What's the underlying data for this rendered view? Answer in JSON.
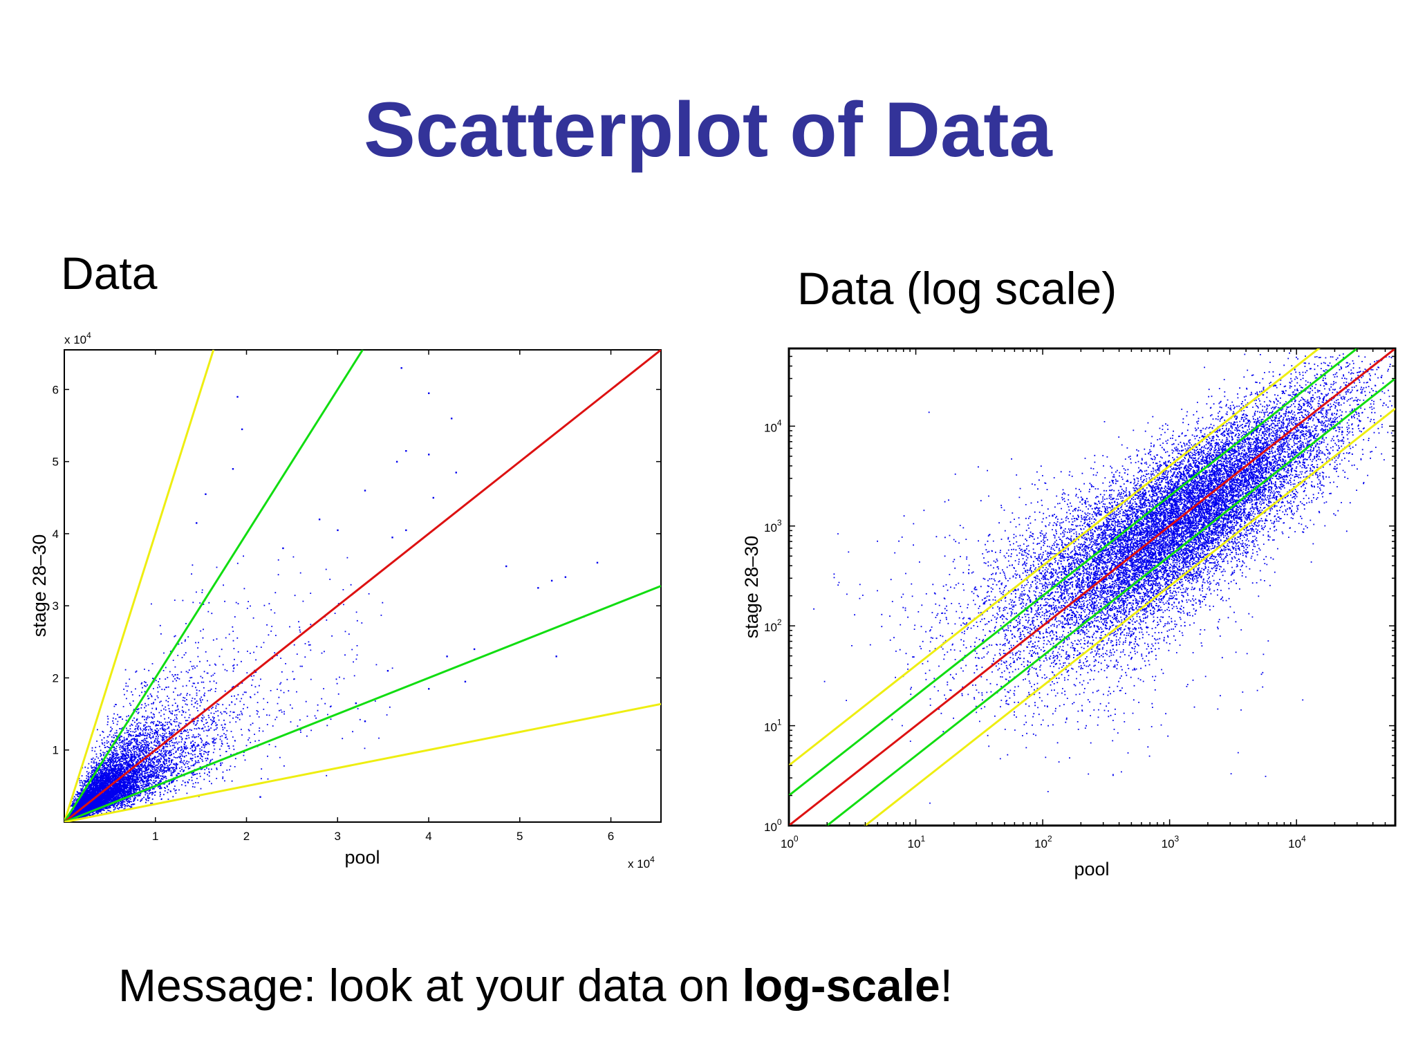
{
  "title": "Scatterplot of Data",
  "captions": {
    "linear": "Data",
    "log": "Data (log scale)"
  },
  "message": {
    "prefix": "Message: look at your data on ",
    "emphasis": "log-scale",
    "suffix": "!"
  },
  "colors": {
    "title": "#333399",
    "points": "#0000ee",
    "identity": "#dd1111",
    "two_fold": "#11dd11",
    "four_fold": "#eeee11"
  },
  "chart_data": [
    {
      "type": "scatter",
      "panel": "linear",
      "xlabel": "pool",
      "ylabel": "stage 28–30",
      "x_multiplier": "x 10",
      "y_multiplier": "x 10",
      "multiplier_exponent": "4",
      "xlim": [
        0,
        65500
      ],
      "ylim": [
        0,
        65500
      ],
      "xticks": [
        10000,
        20000,
        30000,
        40000,
        50000,
        60000
      ],
      "xtick_labels": [
        "1",
        "2",
        "3",
        "4",
        "5",
        "6"
      ],
      "yticks": [
        10000,
        20000,
        30000,
        40000,
        50000,
        60000
      ],
      "ytick_labels": [
        "1",
        "2",
        "3",
        "4",
        "5",
        "6"
      ],
      "grid": false,
      "reference_lines": [
        {
          "slope": 4,
          "color": "yellow"
        },
        {
          "slope": 2,
          "color": "green"
        },
        {
          "slope": 1,
          "color": "red"
        },
        {
          "slope": 0.5,
          "color": "green"
        },
        {
          "slope": 0.25,
          "color": "yellow"
        }
      ],
      "outliers": [
        [
          19000,
          59000
        ],
        [
          19500,
          54500
        ],
        [
          18500,
          49000
        ],
        [
          15500,
          45500
        ],
        [
          14500,
          41500
        ],
        [
          37000,
          63000
        ],
        [
          40000,
          59500
        ],
        [
          42500,
          56000
        ],
        [
          36500,
          50000
        ],
        [
          37500,
          51500
        ],
        [
          40000,
          51000
        ],
        [
          43000,
          48500
        ],
        [
          33000,
          46000
        ],
        [
          40500,
          45000
        ],
        [
          36000,
          39500
        ],
        [
          37500,
          40500
        ],
        [
          48500,
          35500
        ],
        [
          53500,
          33500
        ],
        [
          55000,
          34000
        ],
        [
          58500,
          36000
        ],
        [
          52000,
          32500
        ],
        [
          57000,
          28500
        ],
        [
          54000,
          23000
        ],
        [
          45000,
          24000
        ],
        [
          42000,
          23000
        ],
        [
          35500,
          21000
        ],
        [
          40000,
          18500
        ],
        [
          44000,
          19500
        ],
        [
          32000,
          16500
        ],
        [
          33000,
          14000
        ],
        [
          26000,
          13000
        ],
        [
          21500,
          3500
        ],
        [
          28000,
          42000
        ],
        [
          30000,
          40500
        ],
        [
          24000,
          38000
        ]
      ],
      "core_cluster": "about 8000 dense points below (10000, 10000) spreading up to about (35000, 35000) around the diagonal"
    },
    {
      "type": "scatter",
      "panel": "log",
      "xlabel": "pool",
      "ylabel": "stage 28–30",
      "scale": "log",
      "xlim": [
        1,
        60000
      ],
      "ylim": [
        1,
        60000
      ],
      "xtick_base": "10",
      "xtick_exponents": [
        "0",
        "1",
        "2",
        "3",
        "4"
      ],
      "ytick_base": "10",
      "ytick_exponents": [
        "0",
        "1",
        "2",
        "3",
        "4"
      ],
      "grid": false,
      "reference_lines": [
        {
          "factor": 4,
          "color": "yellow"
        },
        {
          "factor": 2,
          "color": "green"
        },
        {
          "factor": 1,
          "color": "red"
        },
        {
          "factor": 0.5,
          "color": "green"
        },
        {
          "factor": 0.25,
          "color": "yellow"
        }
      ],
      "core_cluster": "about 16000 dense points along the diagonal, roughly 3 to 30000 on both axes"
    }
  ]
}
